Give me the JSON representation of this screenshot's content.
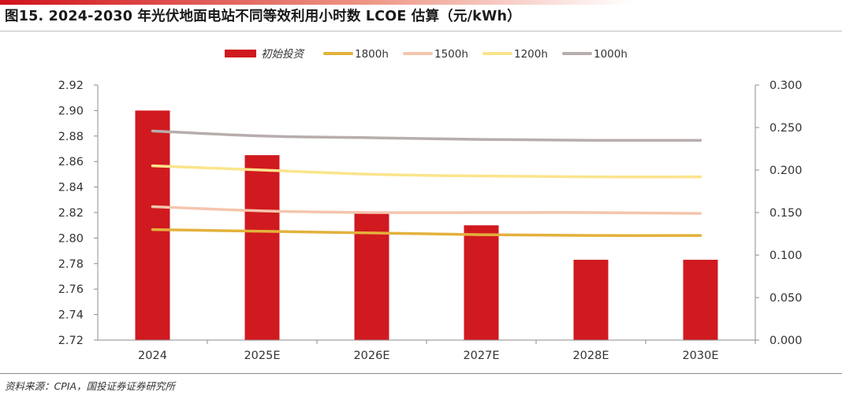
{
  "title": "图15. 2024-2030 年光伏地面电站不同等效利用小时数 LCOE 估算（元/kWh）",
  "source": "资料来源：CPIA，国投证券证券研究所",
  "colors": {
    "accent": "#d0121b",
    "initial_investment": "#d01a1f",
    "h1800": "#e3b13c",
    "h1500": "#f4c5ad",
    "h1200": "#fbe48c",
    "h1000": "#b8adad"
  },
  "chart_data": {
    "type": "bar",
    "categories": [
      "2024",
      "2025E",
      "2026E",
      "2027E",
      "2028E",
      "2030E"
    ],
    "series": [
      {
        "name": "初始投资",
        "type": "bar",
        "axis": "left",
        "color": "#d01a1f",
        "values": [
          2.9,
          2.865,
          2.82,
          2.81,
          2.783,
          2.783
        ]
      },
      {
        "name": "1800h",
        "type": "line",
        "axis": "right",
        "color": "#e3b13c",
        "values": [
          0.13,
          0.128,
          0.126,
          0.124,
          0.123,
          0.123
        ]
      },
      {
        "name": "1500h",
        "type": "line",
        "axis": "right",
        "color": "#f4c5ad",
        "values": [
          0.157,
          0.152,
          0.15,
          0.15,
          0.15,
          0.149
        ]
      },
      {
        "name": "1200h",
        "type": "line",
        "axis": "right",
        "color": "#fbe48c",
        "values": [
          0.205,
          0.2,
          0.195,
          0.193,
          0.192,
          0.192
        ]
      },
      {
        "name": "1000h",
        "type": "line",
        "axis": "right",
        "color": "#b8adad",
        "values": [
          0.246,
          0.24,
          0.238,
          0.236,
          0.235,
          0.235
        ]
      }
    ],
    "left_axis": {
      "ylim": [
        2.72,
        2.92
      ],
      "ticks": [
        "2.92",
        "2.90",
        "2.88",
        "2.86",
        "2.84",
        "2.82",
        "2.80",
        "2.78",
        "2.76",
        "2.74",
        "2.72"
      ]
    },
    "right_axis": {
      "ylim": [
        0.0,
        0.3
      ],
      "ticks": [
        "0.300",
        "0.250",
        "0.200",
        "0.150",
        "0.100",
        "0.050",
        "0.000"
      ]
    },
    "legend_position": "top-center",
    "grid": false
  }
}
